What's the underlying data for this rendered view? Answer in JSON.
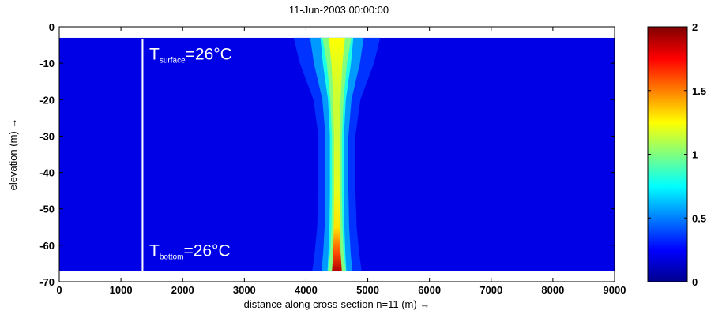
{
  "chart_data": [
    {
      "type": "heatmap",
      "title": "11-Jun-2003 00:00:00",
      "xlabel": "distance along cross-section n=11 (m) →",
      "ylabel": "elevation (m) →",
      "xlim": [
        0,
        9000
      ],
      "ylim": [
        -70,
        0
      ],
      "xticks": [
        0,
        1000,
        2000,
        3000,
        4000,
        5000,
        6000,
        7000,
        8000,
        9000
      ],
      "yticks": [
        0,
        -10,
        -20,
        -30,
        -40,
        -50,
        -60,
        -70
      ],
      "field_extent": {
        "x": [
          0,
          9000
        ],
        "y": [
          -67,
          -3
        ]
      },
      "colormap": "jet",
      "colorbar": {
        "min": 0,
        "max": 2,
        "ticks": [
          0,
          0.5,
          1,
          1.5,
          2
        ]
      },
      "plume": {
        "center_x": 4500,
        "profile": [
          {
            "y": -3,
            "core_halfwidth": 130,
            "edge_halfwidth": 700,
            "core_value": 1.25
          },
          {
            "y": -10,
            "core_halfwidth": 90,
            "edge_halfwidth": 600,
            "core_value": 1.2
          },
          {
            "y": -20,
            "core_halfwidth": 60,
            "edge_halfwidth": 380,
            "core_value": 1.15
          },
          {
            "y": -30,
            "core_halfwidth": 45,
            "edge_halfwidth": 300,
            "core_value": 1.15
          },
          {
            "y": -45,
            "core_halfwidth": 45,
            "edge_halfwidth": 300,
            "core_value": 1.2
          },
          {
            "y": -55,
            "core_halfwidth": 50,
            "edge_halfwidth": 320,
            "core_value": 1.3
          },
          {
            "y": -62,
            "core_halfwidth": 60,
            "edge_halfwidth": 360,
            "core_value": 1.6
          },
          {
            "y": -67,
            "core_halfwidth": 80,
            "edge_halfwidth": 400,
            "core_value": 1.9
          }
        ]
      },
      "marker_line_x": 1350,
      "annotations": [
        {
          "main": "T",
          "sub": "surface",
          "rest": "=26°C",
          "x": 1460,
          "y": -9
        },
        {
          "main": "T",
          "sub": "bottom",
          "rest": "=26°C",
          "x": 1460,
          "y": -63
        }
      ]
    }
  ]
}
